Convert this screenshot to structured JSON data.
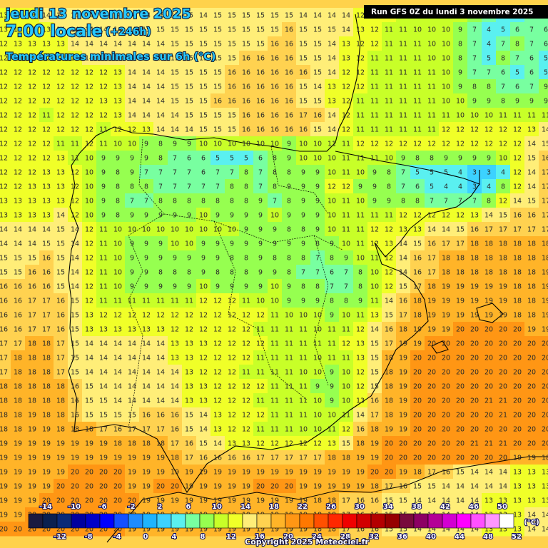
{
  "header": {
    "date": "jeudi 13 novembre 2025",
    "time": "7:00 locale",
    "lead": "(+246h)",
    "title": "Températures minimales sur 6h (°C)",
    "run": "Run GFS 0Z du lundi 3 novembre 2025"
  },
  "grid": {
    "rows": [
      [
        13,
        13,
        13,
        14,
        14,
        14,
        14,
        14,
        14,
        14,
        14,
        15,
        15,
        15,
        14,
        15,
        15,
        15,
        15,
        15,
        15,
        14,
        14,
        14,
        14,
        12,
        12,
        12,
        11,
        11,
        11,
        10,
        10,
        9,
        7,
        4,
        5,
        6,
        7
      ],
      [
        13,
        13,
        13,
        13,
        14,
        14,
        14,
        14,
        14,
        14,
        15,
        15,
        15,
        15,
        15,
        15,
        15,
        15,
        15,
        15,
        16,
        15,
        15,
        15,
        14,
        13,
        12,
        11,
        11,
        10,
        10,
        10,
        9,
        7,
        4,
        5,
        6,
        7,
        6
      ],
      [
        12,
        13,
        13,
        13,
        13,
        14,
        14,
        14,
        14,
        14,
        14,
        14,
        15,
        15,
        15,
        15,
        15,
        15,
        15,
        16,
        16,
        15,
        15,
        14,
        13,
        12,
        12,
        11,
        11,
        11,
        10,
        10,
        8,
        7,
        4,
        7,
        8,
        7,
        6
      ],
      [
        12,
        12,
        12,
        12,
        13,
        13,
        14,
        14,
        14,
        14,
        15,
        15,
        15,
        15,
        15,
        15,
        15,
        16,
        16,
        16,
        16,
        15,
        15,
        14,
        13,
        12,
        11,
        11,
        11,
        11,
        10,
        10,
        8,
        7,
        5,
        8,
        7,
        6,
        5
      ],
      [
        12,
        12,
        12,
        12,
        12,
        12,
        12,
        12,
        13,
        14,
        14,
        14,
        15,
        15,
        15,
        15,
        16,
        16,
        16,
        16,
        16,
        16,
        15,
        14,
        12,
        12,
        11,
        11,
        11,
        11,
        11,
        10,
        9,
        7,
        7,
        6,
        5,
        6,
        5
      ],
      [
        12,
        12,
        12,
        12,
        12,
        12,
        12,
        12,
        13,
        14,
        14,
        14,
        15,
        15,
        15,
        15,
        16,
        16,
        16,
        16,
        16,
        15,
        14,
        13,
        12,
        12,
        11,
        11,
        11,
        11,
        11,
        10,
        9,
        8,
        8,
        7,
        6,
        7,
        9
      ],
      [
        12,
        12,
        12,
        12,
        12,
        12,
        12,
        13,
        13,
        14,
        14,
        14,
        15,
        15,
        15,
        16,
        16,
        16,
        16,
        16,
        16,
        15,
        15,
        13,
        12,
        11,
        11,
        11,
        11,
        11,
        11,
        10,
        10,
        9,
        9,
        8,
        9,
        9,
        9
      ],
      [
        12,
        12,
        12,
        11,
        12,
        12,
        12,
        12,
        13,
        14,
        14,
        14,
        14,
        15,
        15,
        15,
        15,
        16,
        16,
        16,
        16,
        17,
        16,
        14,
        12,
        11,
        11,
        11,
        11,
        11,
        11,
        11,
        10,
        10,
        10,
        11,
        11,
        11,
        11
      ],
      [
        12,
        12,
        12,
        12,
        12,
        12,
        12,
        11,
        12,
        12,
        13,
        14,
        14,
        14,
        15,
        15,
        15,
        16,
        16,
        16,
        16,
        16,
        15,
        14,
        12,
        11,
        11,
        11,
        11,
        11,
        11,
        12,
        12,
        12,
        12,
        12,
        12,
        13,
        14
      ],
      [
        12,
        12,
        12,
        12,
        11,
        11,
        12,
        11,
        10,
        10,
        9,
        8,
        9,
        9,
        10,
        10,
        10,
        10,
        10,
        10,
        9,
        10,
        10,
        11,
        11,
        12,
        12,
        12,
        12,
        12,
        12,
        12,
        12,
        12,
        12,
        12,
        12,
        14,
        15
      ],
      [
        12,
        12,
        12,
        12,
        13,
        11,
        10,
        9,
        9,
        9,
        9,
        8,
        7,
        6,
        6,
        5,
        5,
        5,
        6,
        8,
        9,
        10,
        10,
        10,
        11,
        11,
        11,
        10,
        9,
        8,
        8,
        9,
        9,
        9,
        9,
        10,
        12,
        15,
        16
      ],
      [
        12,
        12,
        12,
        13,
        13,
        12,
        10,
        9,
        8,
        9,
        7,
        7,
        7,
        7,
        6,
        7,
        7,
        8,
        7,
        8,
        8,
        9,
        9,
        10,
        11,
        10,
        9,
        8,
        7,
        5,
        5,
        5,
        4,
        3,
        3,
        4,
        12,
        14,
        17
      ],
      [
        12,
        12,
        13,
        13,
        13,
        12,
        10,
        9,
        8,
        8,
        8,
        7,
        7,
        7,
        7,
        7,
        8,
        8,
        7,
        8,
        9,
        9,
        9,
        12,
        12,
        9,
        9,
        8,
        7,
        6,
        5,
        4,
        4,
        3,
        4,
        8,
        12,
        14,
        17
      ],
      [
        13,
        13,
        13,
        13,
        13,
        12,
        10,
        9,
        8,
        7,
        7,
        8,
        8,
        8,
        8,
        8,
        8,
        8,
        9,
        7,
        8,
        9,
        9,
        10,
        11,
        10,
        9,
        9,
        8,
        8,
        7,
        7,
        7,
        7,
        8,
        12,
        14,
        15,
        17
      ],
      [
        13,
        13,
        13,
        13,
        14,
        12,
        10,
        9,
        8,
        9,
        9,
        9,
        9,
        9,
        10,
        9,
        9,
        9,
        9,
        10,
        9,
        9,
        9,
        10,
        11,
        11,
        11,
        11,
        12,
        12,
        12,
        12,
        12,
        13,
        14,
        15,
        16,
        16,
        17
      ],
      [
        14,
        14,
        14,
        14,
        15,
        14,
        12,
        11,
        10,
        10,
        10,
        10,
        10,
        10,
        10,
        10,
        10,
        9,
        9,
        9,
        8,
        8,
        9,
        10,
        11,
        11,
        12,
        12,
        13,
        13,
        14,
        14,
        15,
        16,
        17,
        17,
        17,
        17,
        17
      ],
      [
        14,
        14,
        14,
        15,
        15,
        14,
        12,
        11,
        10,
        9,
        9,
        9,
        10,
        10,
        9,
        9,
        9,
        9,
        9,
        9,
        9,
        9,
        8,
        9,
        10,
        11,
        12,
        13,
        14,
        15,
        16,
        17,
        17,
        18,
        18,
        18,
        18,
        18,
        18
      ],
      [
        15,
        15,
        15,
        16,
        15,
        14,
        12,
        11,
        10,
        9,
        9,
        9,
        9,
        9,
        9,
        9,
        8,
        8,
        9,
        8,
        8,
        8,
        7,
        8,
        9,
        10,
        11,
        12,
        14,
        16,
        17,
        18,
        18,
        18,
        18,
        18,
        18,
        18,
        18
      ],
      [
        15,
        15,
        16,
        16,
        15,
        14,
        12,
        11,
        10,
        9,
        9,
        8,
        8,
        8,
        9,
        8,
        8,
        8,
        9,
        9,
        8,
        7,
        7,
        6,
        7,
        8,
        10,
        12,
        14,
        16,
        17,
        18,
        18,
        18,
        18,
        18,
        18,
        18,
        19
      ],
      [
        16,
        16,
        16,
        16,
        15,
        14,
        12,
        11,
        10,
        9,
        9,
        9,
        9,
        9,
        10,
        9,
        9,
        9,
        9,
        10,
        9,
        8,
        8,
        7,
        7,
        8,
        10,
        12,
        15,
        17,
        18,
        19,
        19,
        19,
        19,
        19,
        18,
        18,
        19
      ],
      [
        16,
        16,
        17,
        17,
        16,
        15,
        12,
        11,
        11,
        11,
        11,
        11,
        11,
        11,
        12,
        12,
        12,
        11,
        10,
        10,
        9,
        9,
        9,
        8,
        8,
        9,
        11,
        14,
        16,
        18,
        19,
        19,
        19,
        19,
        19,
        19,
        18,
        18,
        19
      ],
      [
        16,
        16,
        17,
        17,
        16,
        15,
        13,
        12,
        12,
        12,
        12,
        12,
        12,
        12,
        12,
        12,
        12,
        12,
        12,
        11,
        10,
        10,
        10,
        9,
        10,
        11,
        13,
        15,
        17,
        18,
        19,
        19,
        19,
        19,
        19,
        19,
        18,
        18,
        19
      ],
      [
        16,
        16,
        17,
        17,
        16,
        15,
        13,
        13,
        13,
        13,
        13,
        13,
        12,
        12,
        12,
        12,
        12,
        12,
        11,
        11,
        11,
        11,
        10,
        11,
        11,
        12,
        14,
        16,
        18,
        19,
        19,
        19,
        20,
        20,
        20,
        20,
        20,
        19,
        19
      ],
      [
        17,
        17,
        18,
        18,
        17,
        15,
        14,
        14,
        14,
        14,
        14,
        14,
        13,
        13,
        13,
        12,
        12,
        12,
        12,
        11,
        11,
        11,
        11,
        11,
        12,
        13,
        15,
        17,
        19,
        19,
        20,
        20,
        20,
        20,
        20,
        20,
        20,
        20,
        20
      ],
      [
        17,
        18,
        18,
        18,
        17,
        15,
        14,
        14,
        14,
        14,
        14,
        14,
        13,
        13,
        12,
        12,
        12,
        12,
        11,
        11,
        11,
        11,
        10,
        11,
        11,
        13,
        15,
        18,
        19,
        20,
        20,
        20,
        20,
        20,
        20,
        20,
        20,
        20,
        20
      ],
      [
        17,
        18,
        18,
        18,
        17,
        15,
        14,
        14,
        14,
        14,
        14,
        14,
        14,
        13,
        12,
        12,
        12,
        11,
        11,
        11,
        11,
        10,
        10,
        9,
        10,
        12,
        15,
        18,
        19,
        20,
        20,
        20,
        20,
        20,
        20,
        20,
        20,
        20,
        20
      ],
      [
        18,
        18,
        18,
        18,
        18,
        16,
        15,
        14,
        14,
        14,
        14,
        14,
        14,
        13,
        13,
        12,
        12,
        12,
        12,
        11,
        11,
        11,
        9,
        9,
        10,
        12,
        15,
        18,
        19,
        20,
        20,
        20,
        20,
        20,
        20,
        20,
        20,
        20,
        20
      ],
      [
        18,
        18,
        18,
        18,
        18,
        16,
        15,
        15,
        14,
        14,
        14,
        14,
        14,
        13,
        13,
        12,
        12,
        12,
        11,
        11,
        11,
        11,
        10,
        9,
        10,
        13,
        16,
        18,
        19,
        20,
        20,
        20,
        20,
        20,
        21,
        21,
        20,
        20,
        20
      ],
      [
        18,
        18,
        19,
        18,
        18,
        16,
        15,
        15,
        15,
        15,
        16,
        16,
        16,
        15,
        14,
        13,
        12,
        12,
        12,
        11,
        11,
        11,
        10,
        10,
        11,
        14,
        17,
        18,
        19,
        20,
        20,
        20,
        20,
        20,
        20,
        21,
        20,
        20,
        20
      ],
      [
        18,
        18,
        19,
        19,
        18,
        18,
        18,
        17,
        16,
        17,
        17,
        17,
        16,
        15,
        14,
        13,
        12,
        12,
        11,
        11,
        11,
        10,
        10,
        11,
        12,
        16,
        18,
        19,
        19,
        20,
        20,
        20,
        20,
        20,
        20,
        20,
        20,
        20,
        20
      ],
      [
        19,
        19,
        19,
        19,
        19,
        19,
        19,
        19,
        18,
        18,
        18,
        18,
        17,
        16,
        15,
        14,
        13,
        13,
        12,
        12,
        12,
        12,
        12,
        13,
        15,
        18,
        19,
        20,
        20,
        20,
        20,
        20,
        20,
        21,
        21,
        21,
        20,
        20,
        20
      ],
      [
        19,
        19,
        19,
        19,
        19,
        19,
        19,
        19,
        19,
        19,
        19,
        19,
        18,
        17,
        16,
        16,
        16,
        16,
        17,
        17,
        17,
        17,
        17,
        18,
        18,
        19,
        19,
        20,
        20,
        20,
        20,
        20,
        20,
        20,
        20,
        20,
        19,
        19,
        18
      ],
      [
        19,
        19,
        19,
        19,
        19,
        20,
        20,
        20,
        20,
        19,
        19,
        19,
        19,
        19,
        19,
        19,
        19,
        19,
        19,
        19,
        19,
        19,
        19,
        19,
        19,
        19,
        20,
        20,
        19,
        18,
        17,
        16,
        15,
        14,
        14,
        14,
        13,
        13,
        13
      ],
      [
        19,
        19,
        19,
        19,
        20,
        20,
        20,
        20,
        20,
        19,
        19,
        20,
        20,
        19,
        19,
        19,
        19,
        19,
        20,
        20,
        20,
        19,
        19,
        19,
        19,
        19,
        18,
        17,
        16,
        15,
        15,
        14,
        14,
        14,
        14,
        14,
        13,
        13,
        13
      ],
      [
        19,
        19,
        19,
        20,
        20,
        20,
        20,
        20,
        20,
        20,
        19,
        19,
        19,
        19,
        19,
        19,
        19,
        19,
        19,
        19,
        19,
        19,
        18,
        18,
        17,
        16,
        16,
        15,
        15,
        14,
        14,
        14,
        14,
        14,
        13,
        13,
        13,
        13,
        13
      ],
      [
        19,
        19,
        20,
        20,
        20,
        20,
        20,
        20,
        20,
        19,
        19,
        19,
        19,
        19,
        19,
        19,
        19,
        19,
        19,
        19,
        19,
        19,
        18,
        18,
        17,
        16,
        16,
        15,
        15,
        14,
        14,
        14,
        14,
        14,
        13,
        13,
        13,
        14,
        14
      ],
      [
        20,
        20,
        20,
        20,
        20,
        20,
        20,
        20,
        20,
        19,
        19,
        19,
        19,
        19,
        19,
        19,
        19,
        19,
        19,
        19,
        19,
        19,
        18,
        18,
        17,
        16,
        16,
        15,
        15,
        14,
        14,
        14,
        14,
        14,
        13,
        13,
        13,
        14,
        14
      ]
    ]
  },
  "legend": {
    "ticks": [
      -14,
      -12,
      -10,
      -8,
      -6,
      -4,
      -2,
      0,
      2,
      4,
      6,
      8,
      10,
      12,
      14,
      16,
      18,
      20,
      22,
      24,
      26,
      28,
      30,
      32,
      34,
      36,
      38,
      40,
      42,
      44,
      46,
      48,
      50,
      52
    ],
    "colors": [
      "#1a1a40",
      "#0a2050",
      "#0a2a78",
      "#0000a0",
      "#0000c8",
      "#0000ff",
      "#1450ff",
      "#1e8cff",
      "#1eb4ff",
      "#3cd2ff",
      "#5af0f0",
      "#78ffa0",
      "#96ff50",
      "#c8ff28",
      "#f0ff28",
      "#ffee78",
      "#ffd250",
      "#ffb428",
      "#ff9614",
      "#ff7800",
      "#ff5000",
      "#ff2800",
      "#f00000",
      "#d20000",
      "#b40000",
      "#960000",
      "#780a3c",
      "#8c0064",
      "#b40096",
      "#d200d2",
      "#ff00ff",
      "#ff50ff",
      "#ff96ff",
      "#ffffff"
    ],
    "unit": "(°C)"
  },
  "footer": {
    "copyright": "Copyright 2025 Meteociel.fr"
  }
}
